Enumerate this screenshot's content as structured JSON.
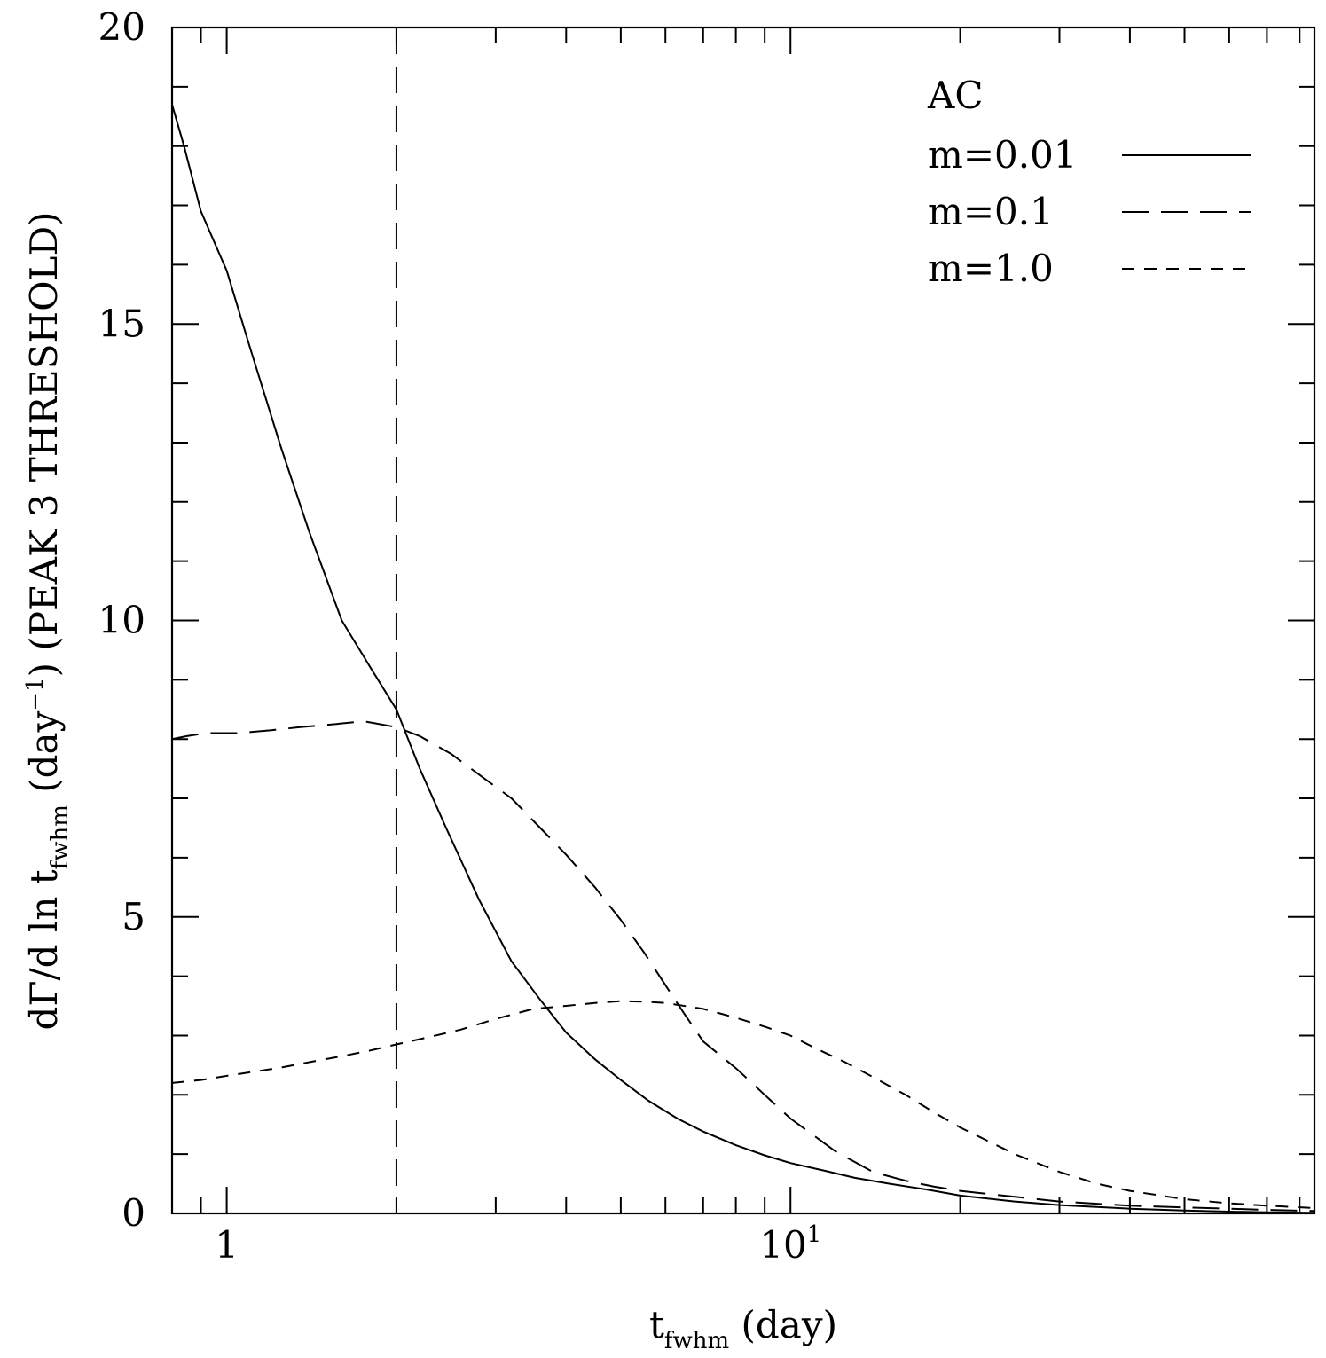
{
  "chart_data": {
    "type": "line",
    "xscale": "log",
    "xlim": [
      0.8,
      85
    ],
    "ylim": [
      0,
      20
    ],
    "xlabel": {
      "main": "t",
      "sub": "fwhm",
      "rest": " (day)"
    },
    "ylabel": {
      "pre": "dΓ/d ln t",
      "sub": "fwhm",
      "mid": " (day",
      "sup": "−1",
      "post": ") (PEAK 3 THRESHOLD)"
    },
    "x_ticks": [
      {
        "value": 1,
        "base": "1",
        "exp": ""
      },
      {
        "value": 10,
        "base": "10",
        "exp": "1"
      }
    ],
    "y_ticks": [
      {
        "value": 0,
        "label": "0"
      },
      {
        "value": 5,
        "label": "5"
      },
      {
        "value": 10,
        "label": "10"
      },
      {
        "value": 15,
        "label": "15"
      },
      {
        "value": 20,
        "label": "20"
      }
    ],
    "legend_title": "AC",
    "legend_position": "top-right",
    "vline": {
      "x": 2.0,
      "style": "long-dash"
    },
    "series": [
      {
        "name": "m=0.01",
        "style": "solid",
        "x": [
          0.8,
          0.84,
          0.9,
          1.0,
          1.1,
          1.25,
          1.4,
          1.6,
          1.8,
          2.0,
          2.2,
          2.45,
          2.8,
          3.2,
          3.6,
          4.0,
          4.5,
          5.0,
          5.6,
          6.3,
          7.0,
          8.0,
          9.0,
          10.0,
          11.5,
          13.0,
          15.0,
          17.5,
          20.0,
          25.0,
          30.0,
          40.0,
          50.0,
          60.0,
          70.0,
          85.0
        ],
        "y": [
          18.7,
          18.0,
          16.9,
          15.9,
          14.6,
          12.9,
          11.5,
          10.0,
          9.2,
          8.5,
          7.5,
          6.5,
          5.3,
          4.25,
          3.6,
          3.05,
          2.6,
          2.25,
          1.9,
          1.6,
          1.38,
          1.15,
          0.98,
          0.85,
          0.72,
          0.6,
          0.5,
          0.4,
          0.3,
          0.2,
          0.14,
          0.08,
          0.05,
          0.03,
          0.02,
          0.01
        ]
      },
      {
        "name": "m=0.1",
        "style": "long-dash",
        "x": [
          0.8,
          0.85,
          0.92,
          1.05,
          1.2,
          1.35,
          1.55,
          1.75,
          2.0,
          2.2,
          2.5,
          2.85,
          3.2,
          3.6,
          4.0,
          4.5,
          5.0,
          5.5,
          6.0,
          6.5,
          7.0,
          8.0,
          9.0,
          10.0,
          12.0,
          14.0,
          16.0,
          18.0,
          20.0,
          25.0,
          30.0,
          40.0,
          50.0,
          60.0,
          70.0,
          85.0
        ],
        "y": [
          8.0,
          8.05,
          8.1,
          8.1,
          8.15,
          8.2,
          8.25,
          8.3,
          8.2,
          8.05,
          7.75,
          7.35,
          7.0,
          6.5,
          6.05,
          5.5,
          4.95,
          4.4,
          3.85,
          3.35,
          2.9,
          2.45,
          2.0,
          1.6,
          1.05,
          0.7,
          0.55,
          0.45,
          0.38,
          0.28,
          0.2,
          0.13,
          0.1,
          0.08,
          0.06,
          0.04
        ]
      },
      {
        "name": "m=1.0",
        "style": "short-dash",
        "x": [
          0.8,
          0.9,
          1.0,
          1.1,
          1.25,
          1.4,
          1.6,
          1.8,
          2.0,
          2.3,
          2.6,
          3.0,
          3.5,
          4.0,
          4.5,
          5.0,
          5.5,
          6.0,
          7.0,
          8.0,
          9.0,
          10.0,
          11.0,
          12.5,
          14.0,
          16.0,
          18.0,
          20.0,
          25.0,
          30.0,
          35.0,
          40.0,
          50.0,
          60.0,
          70.0,
          85.0
        ],
        "y": [
          2.2,
          2.25,
          2.32,
          2.38,
          2.46,
          2.55,
          2.65,
          2.75,
          2.85,
          2.98,
          3.1,
          3.28,
          3.45,
          3.5,
          3.55,
          3.58,
          3.57,
          3.55,
          3.45,
          3.3,
          3.15,
          3.0,
          2.8,
          2.55,
          2.3,
          2.0,
          1.7,
          1.45,
          1.0,
          0.7,
          0.5,
          0.38,
          0.24,
          0.17,
          0.13,
          0.09
        ]
      }
    ]
  }
}
